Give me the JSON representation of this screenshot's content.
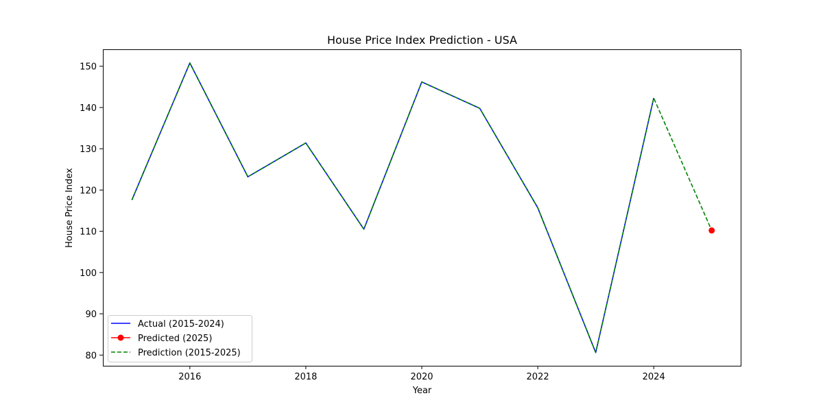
{
  "chart_data": {
    "type": "line",
    "title": "House Price Index Prediction - USA",
    "xlabel": "Year",
    "ylabel": "House Price Index",
    "xlim": [
      2014.5,
      2025.5
    ],
    "ylim": [
      77.4,
      154.1
    ],
    "x_ticks": [
      2016,
      2018,
      2020,
      2022,
      2024
    ],
    "y_ticks": [
      80,
      90,
      100,
      110,
      120,
      130,
      140,
      150
    ],
    "grid": false,
    "legend_position": "lower-left",
    "series": [
      {
        "name": "Actual (2015-2024)",
        "color": "#0000ff",
        "style": "solid",
        "marker": "none",
        "x": [
          2015,
          2016,
          2017,
          2018,
          2019,
          2020,
          2021,
          2022,
          2023,
          2024
        ],
        "values": [
          117.6,
          150.8,
          123.2,
          131.4,
          110.5,
          146.2,
          139.8,
          115.7,
          80.6,
          142.3
        ]
      },
      {
        "name": "Predicted (2025)",
        "color": "#ff0000",
        "style": "solid",
        "marker": "circle",
        "x": [
          2025
        ],
        "values": [
          110.2
        ]
      },
      {
        "name": "Prediction (2015-2025)",
        "color": "#008000",
        "style": "dashed",
        "marker": "none",
        "x": [
          2015,
          2016,
          2017,
          2018,
          2019,
          2020,
          2021,
          2022,
          2023,
          2024,
          2025
        ],
        "values": [
          117.6,
          150.8,
          123.2,
          131.4,
          110.5,
          146.2,
          139.8,
          115.7,
          80.6,
          142.3,
          110.2
        ]
      }
    ]
  }
}
